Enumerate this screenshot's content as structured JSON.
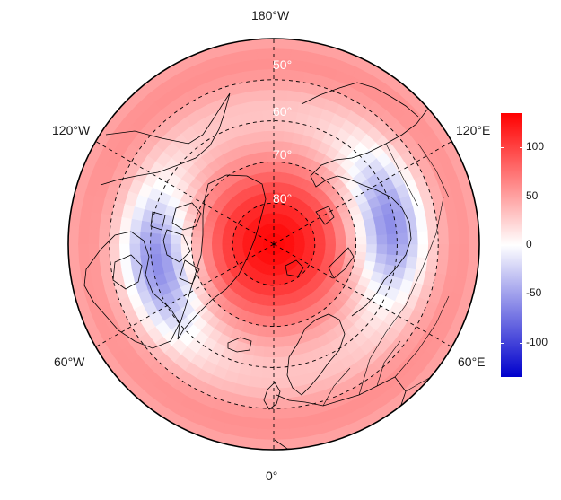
{
  "map": {
    "projection": "north-polar-stereographic",
    "longitude_labels": {
      "top": "180°W",
      "bottom": "0°",
      "upper_left": "120°W",
      "upper_right": "120°E",
      "lower_left": "60°W",
      "lower_right": "60°E"
    },
    "latitude_labels": [
      "50°",
      "60°",
      "70°",
      "80°"
    ],
    "latitude_circles": [
      50,
      60,
      70,
      80
    ],
    "meridians_every_deg": 60
  },
  "colorbar": {
    "ticks": [
      "100",
      "50",
      "0",
      "-50",
      "-100"
    ],
    "tick_values": [
      100,
      50,
      0,
      -50,
      -100
    ],
    "range": [
      -135,
      135
    ],
    "colors": {
      "high": "#ff0000",
      "mid": "#ffffff",
      "low": "#0000cc"
    }
  },
  "field": {
    "description_pattern": "wavenumber-2 ridge/trough",
    "max_value_pole": 130,
    "trough_centers_lon": [
      100,
      -80
    ],
    "trough_lat": 62,
    "trough_value": -55
  }
}
